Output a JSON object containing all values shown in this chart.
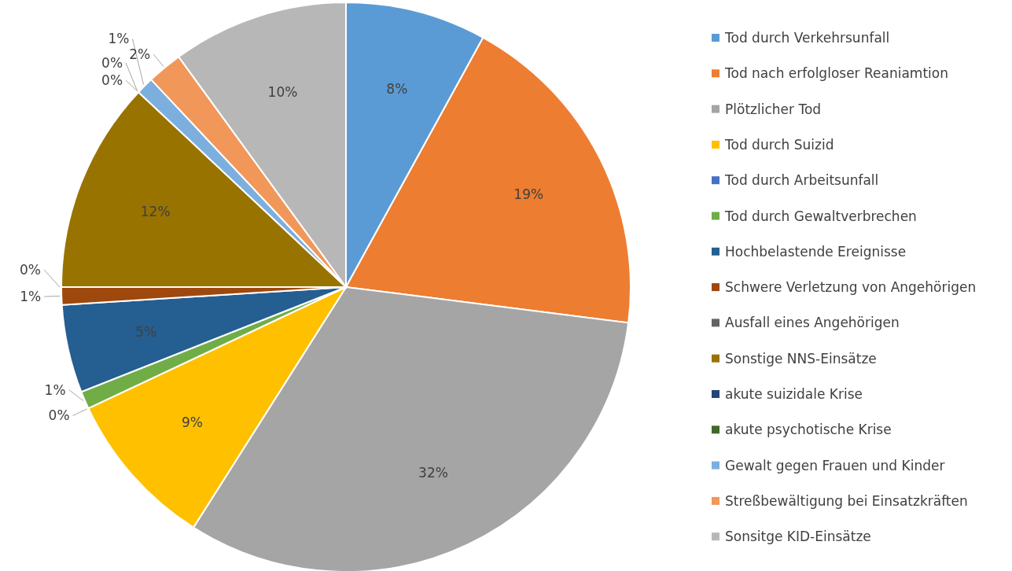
{
  "chart_data": {
    "type": "pie",
    "categories": [
      "Tod durch Verkehrsunfall",
      "Tod nach erfolgloser Reaniamtion",
      "Plötzlicher Tod",
      "Tod durch Suizid",
      "Tod durch Arbeitsunfall",
      "Tod durch Gewaltverbrechen",
      "Hochbelastende Ereignisse",
      "Schwere Verletzung von Angehörigen",
      "Ausfall eines Angehörigen",
      "Sonstige NNS-Einsätze",
      "akute suizidale Krise",
      "akute psychotische Krise",
      "Gewalt gegen Frauen und Kinder",
      "Streßbewältigung bei Einsatzkräften",
      "Sonsitge KID-Einsätze"
    ],
    "values": [
      8,
      19,
      32,
      9,
      0,
      1,
      5,
      1,
      0,
      12,
      0,
      0,
      1,
      2,
      10
    ],
    "value_labels": [
      "8%",
      "19%",
      "32%",
      "9%",
      "0%",
      "1%",
      "5%",
      "1%",
      "0%",
      "12%",
      "0%",
      "0%",
      "1%",
      "2%",
      "10%"
    ],
    "colors": [
      "#5b9bd5",
      "#ed7d31",
      "#a5a5a5",
      "#ffc000",
      "#4472c4",
      "#70ad47",
      "#255e91",
      "#9e480e",
      "#636363",
      "#997300",
      "#264478",
      "#43682b",
      "#7cafdd",
      "#f1975a",
      "#b7b7b7"
    ],
    "legend": "right"
  }
}
